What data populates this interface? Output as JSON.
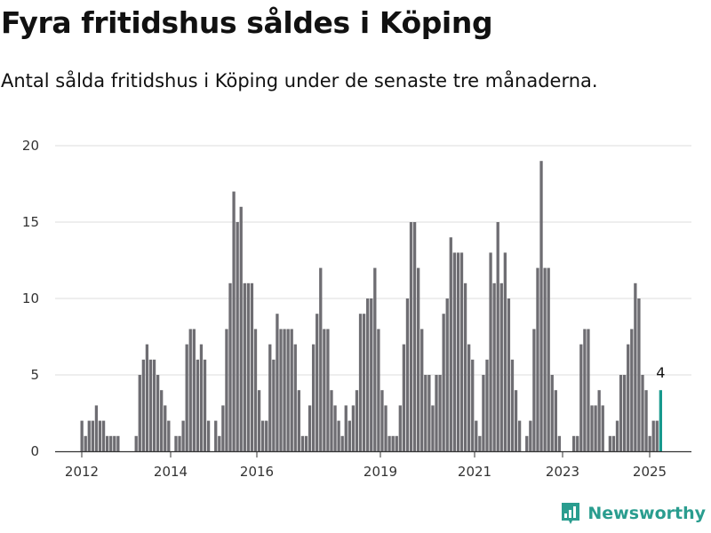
{
  "header": {
    "title": "Fyra fritidshus såldes i Köping",
    "subtitle": "Antal sålda fritidshus i Köping under de senaste tre månaderna."
  },
  "brand": {
    "name": "Newsworthy",
    "icon": "newsworthy-logo-icon",
    "color": "#2a9d8f"
  },
  "colors": {
    "bar": "#6e6d72",
    "highlight": "#17998d",
    "grid": "#dddddd",
    "axis": "#333333"
  },
  "chart_data": {
    "type": "bar",
    "title": "Fyra fritidshus såldes i Köping",
    "subtitle": "Antal sålda fritidshus i Köping under de senaste tre månaderna.",
    "xlabel": "",
    "ylabel": "",
    "ylim": [
      0,
      20
    ],
    "yticks": [
      "0",
      "5",
      "10",
      "15",
      "20"
    ],
    "xticks": [
      "2012",
      "2014",
      "2016",
      "2019",
      "2021",
      "2023",
      "2025"
    ],
    "grid": true,
    "legend": "none",
    "series": [
      {
        "values": [
          2,
          1,
          2,
          2,
          3,
          2,
          2,
          1,
          1,
          1,
          1,
          0,
          0,
          0,
          0,
          1,
          5,
          6,
          7,
          6,
          6,
          5,
          4,
          3,
          2,
          0,
          1,
          1,
          2,
          7,
          8,
          8,
          6,
          7,
          6,
          2,
          0,
          2,
          1,
          3,
          8,
          11,
          17,
          15,
          16,
          11,
          11,
          11,
          8,
          4,
          2,
          2,
          7,
          6,
          9,
          8,
          8,
          8,
          8,
          7,
          4,
          1,
          1,
          3,
          7,
          9,
          12,
          8,
          8,
          4,
          3,
          2,
          1,
          3,
          2,
          3,
          4,
          9,
          9,
          10,
          10,
          12,
          8,
          4,
          3,
          1,
          1,
          1,
          3,
          7,
          10,
          15,
          15,
          12,
          8,
          5,
          5,
          3,
          5,
          5,
          9,
          10,
          14,
          13,
          13,
          13,
          11,
          7,
          6,
          2,
          1,
          5,
          6,
          13,
          11,
          15,
          11,
          13,
          10,
          6,
          4,
          2,
          0,
          1,
          2,
          8,
          12,
          19,
          12,
          12,
          5,
          4,
          1,
          0,
          0,
          0,
          1,
          1,
          7,
          8,
          8,
          3,
          3,
          4,
          3,
          0,
          1,
          1,
          2,
          5,
          5,
          7,
          8,
          11,
          10,
          5,
          4,
          1,
          2,
          2,
          4
        ]
      }
    ],
    "annotations": [
      {
        "label": "4",
        "value": 4
      }
    ]
  }
}
